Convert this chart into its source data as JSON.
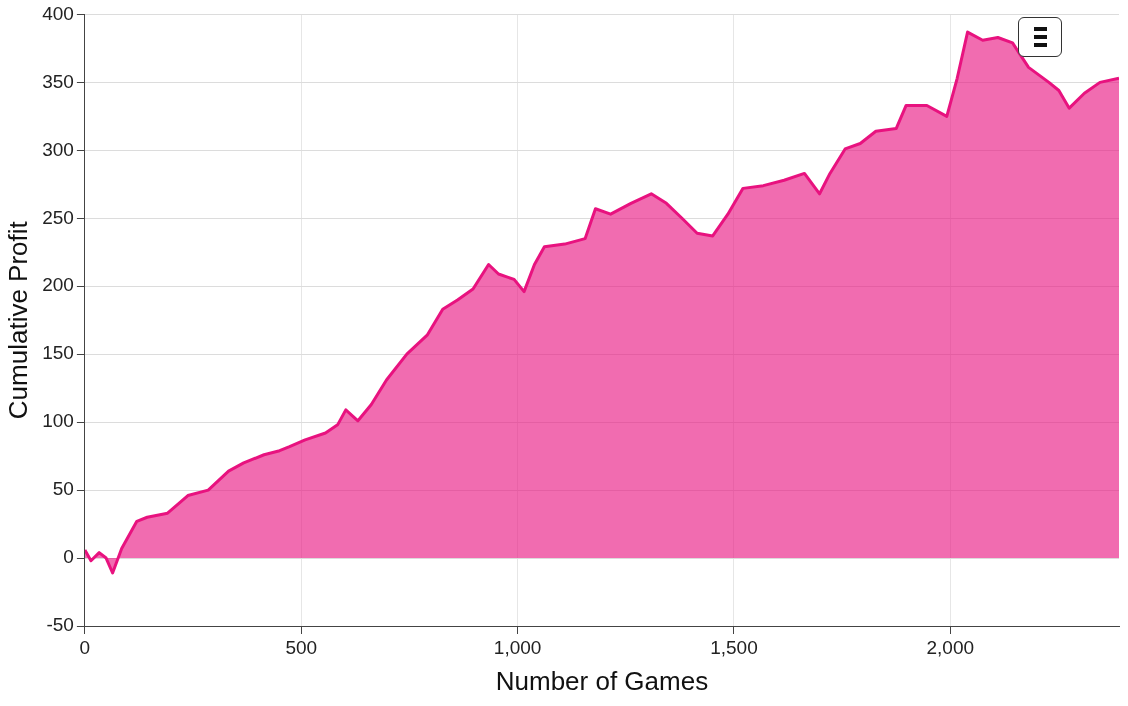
{
  "chart_data": {
    "type": "area",
    "xlabel": "Number of Games",
    "ylabel": "Cumulative Profit",
    "x": [
      0,
      14,
      33,
      49,
      64,
      85,
      120,
      144,
      191,
      238,
      285,
      332,
      367,
      414,
      450,
      473,
      509,
      556,
      584,
      603,
      631,
      662,
      697,
      744,
      791,
      827,
      862,
      897,
      933,
      956,
      992,
      1015,
      1039,
      1062,
      1109,
      1156,
      1180,
      1215,
      1262,
      1309,
      1344,
      1380,
      1415,
      1451,
      1486,
      1521,
      1568,
      1616,
      1663,
      1698,
      1722,
      1757,
      1792,
      1828,
      1875,
      1898,
      1946,
      1992,
      2016,
      2040,
      2075,
      2110,
      2144,
      2181,
      2228,
      2251,
      2275,
      2310,
      2346,
      2390
    ],
    "series": [
      {
        "color": "#e8127f",
        "values": [
          6,
          -2,
          4,
          0,
          -11,
          7,
          27,
          30,
          33,
          46,
          50,
          64,
          70,
          76,
          79,
          82,
          87,
          92,
          98,
          109,
          101,
          113,
          131,
          150,
          164,
          183,
          190,
          198,
          216,
          209,
          205,
          196,
          216,
          229,
          231,
          235,
          257,
          253,
          261,
          268,
          261,
          250,
          239,
          237,
          253,
          272,
          274,
          278,
          283,
          268,
          283,
          301,
          305,
          314,
          316,
          333,
          333,
          325,
          353,
          387,
          381,
          383,
          379,
          361,
          350,
          344,
          331,
          342,
          350,
          353
        ]
      }
    ],
    "xlim": [
      0,
      2390
    ],
    "xticks": [
      0,
      500,
      {
        "value": 1000,
        "label": "1,000"
      },
      {
        "value": 1500,
        "label": "1,500"
      },
      {
        "value": 2000,
        "label": "2,000"
      }
    ],
    "ylim": [
      -50,
      400
    ],
    "yticks": [
      -50,
      0,
      50,
      100,
      150,
      200,
      250,
      300,
      350,
      400
    ],
    "grid": true,
    "legend": false
  }
}
